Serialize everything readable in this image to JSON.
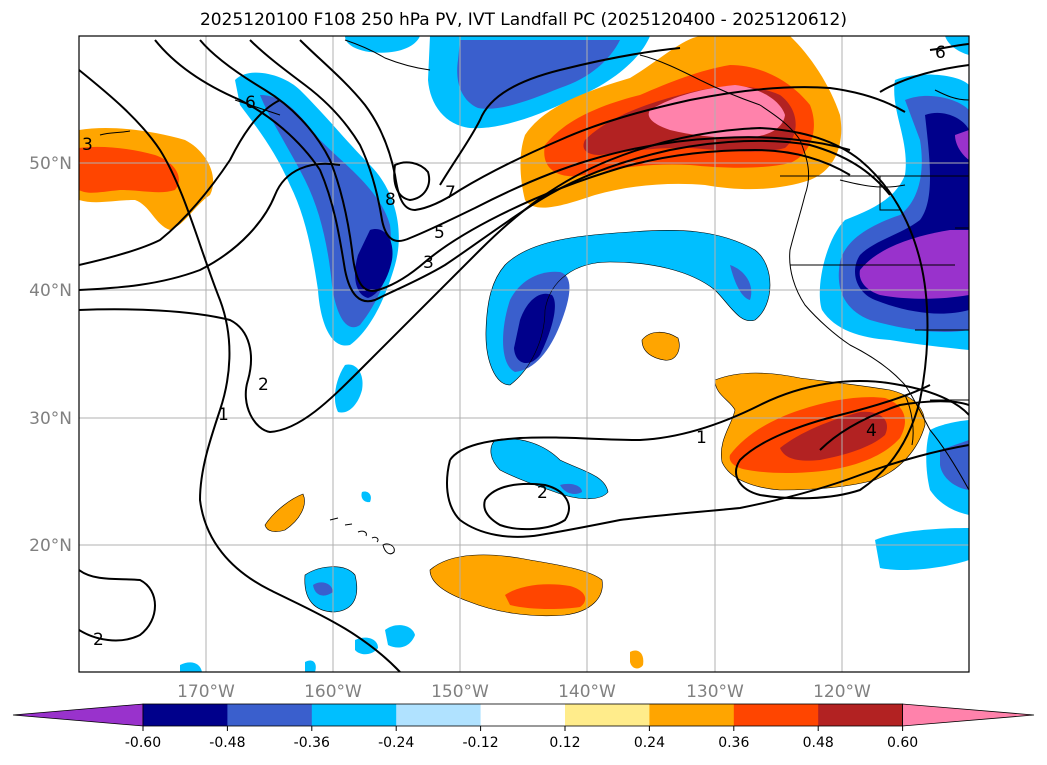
{
  "title": "2025120100 F108 250 hPa PV, IVT Landfall PC (2025120400 - 2025120612)",
  "lat_labels": [
    "50°N",
    "40°N",
    "30°N",
    "20°N"
  ],
  "lon_labels": [
    "170°W",
    "160°W",
    "150°W",
    "140°W",
    "130°W",
    "120°W"
  ],
  "contour_labels": [
    "6",
    "8",
    "7",
    "5",
    "3",
    "3",
    "2",
    "1",
    "1",
    "2",
    "2",
    "4",
    "6"
  ],
  "colorbar": {
    "ticks": [
      "-0.60",
      "-0.48",
      "-0.36",
      "-0.24",
      "-0.12",
      "0.12",
      "0.24",
      "0.36",
      "0.48",
      "0.60"
    ],
    "colors": [
      "#9932cc",
      "#00008b",
      "#3a5fcd",
      "#00bfff",
      "#b0e2ff",
      "#ffffff",
      "#ffec8b",
      "#ffa500",
      "#ff4500",
      "#b22222",
      "#ff82ab"
    ]
  }
}
